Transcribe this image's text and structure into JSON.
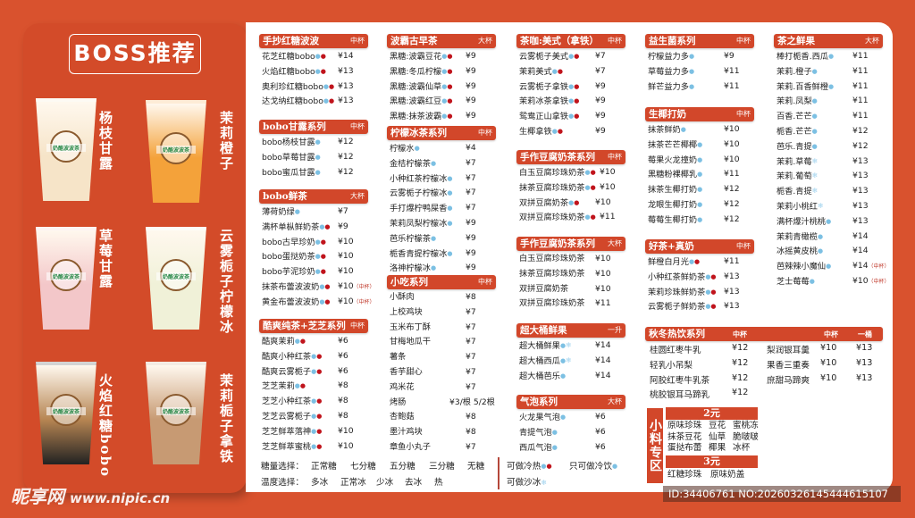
{
  "colors": {
    "background": "#d9522e",
    "header_bar": "#d2472a",
    "drop_blue": "#7cc0e3",
    "drop_red": "#c0141c",
    "snow": "#9fd2ee"
  },
  "boss": {
    "title": "BOSS推荐",
    "drinks": [
      {
        "name": "杨枝甘露",
        "color": "#f6e4c8"
      },
      {
        "name": "茉莉橙子",
        "color": "#f4a23a"
      },
      {
        "name": "草莓甘露",
        "color": "#f3c7c9"
      },
      {
        "name": "云雾栀子柠檬冰",
        "color": "#f0f1d8"
      },
      {
        "name": "火焰红糖bobo",
        "color": "#b68552"
      },
      {
        "name": "茉莉栀子拿铁",
        "color": "#c79a73"
      }
    ],
    "cup_logo": "奶酪波波茶"
  },
  "sections": [
    {
      "title": "手抄红糖波波",
      "size": "中杯",
      "items": [
        {
          "name": "花芝红糖bobo",
          "price": "¥14",
          "icons": [
            "drop-blue",
            "drop-red"
          ]
        },
        {
          "name": "火焰红糖bobo",
          "price": "¥13",
          "icons": [
            "drop-blue",
            "drop-red"
          ]
        },
        {
          "name": "奥利珍红糖bobo",
          "price": "¥13",
          "icons": [
            "drop-blue",
            "drop-red"
          ]
        },
        {
          "name": "达戈纳红糖bobo",
          "price": "¥13",
          "icons": [
            "drop-blue",
            "drop-red"
          ]
        }
      ]
    },
    {
      "title": "bobo甘露系列",
      "size": "中杯",
      "items": [
        {
          "name": "bobo杨枝甘露",
          "price": "¥12",
          "icons": [
            "drop-blue"
          ]
        },
        {
          "name": "bobo草莓甘露",
          "price": "¥12",
          "icons": [
            "drop-blue"
          ]
        },
        {
          "name": "bobo蜜瓜甘露",
          "price": "¥12",
          "icons": [
            "drop-blue"
          ]
        }
      ]
    },
    {
      "title": "bobo鲜茶",
      "size": "大杯",
      "items": [
        {
          "name": "薄荷奶绿",
          "price": "¥7",
          "icons": [
            "drop-blue"
          ]
        },
        {
          "name": "满杯单枞鲜奶茶",
          "price": "¥9",
          "icons": [
            "drop-blue",
            "drop-red"
          ]
        },
        {
          "name": "bobo古早珍奶",
          "price": "¥10",
          "icons": [
            "drop-blue",
            "drop-red"
          ]
        },
        {
          "name": "bobo蛋挞奶茶",
          "price": "¥10",
          "icons": [
            "drop-blue",
            "drop-red"
          ]
        },
        {
          "name": "bobo芋泥珍奶",
          "price": "¥10",
          "icons": [
            "drop-blue",
            "drop-red"
          ]
        },
        {
          "name": "抹茶布蕾波波奶",
          "price": "¥10",
          "note": "（中杯）",
          "icons": [
            "drop-blue",
            "drop-red"
          ]
        },
        {
          "name": "黄金布蕾波波奶",
          "price": "¥10",
          "note": "（中杯）",
          "icons": [
            "drop-blue",
            "drop-red"
          ]
        }
      ]
    },
    {
      "title": "酷爽纯茶+芝芝系列",
      "size": "中杯",
      "items": [
        {
          "name": "酷爽茉莉",
          "price": "¥6",
          "icons": [
            "drop-blue",
            "drop-red"
          ]
        },
        {
          "name": "酷爽小种红茶",
          "price": "¥6",
          "icons": [
            "drop-blue",
            "drop-red"
          ]
        },
        {
          "name": "酷爽云雾栀子",
          "price": "¥6",
          "icons": [
            "drop-blue",
            "drop-red"
          ]
        },
        {
          "name": "芝芝茉莉",
          "price": "¥8",
          "icons": [
            "drop-blue",
            "drop-red"
          ]
        },
        {
          "name": "芝芝小种红茶",
          "price": "¥8",
          "icons": [
            "drop-blue",
            "drop-red"
          ]
        },
        {
          "name": "芝芝云雾栀子",
          "price": "¥8",
          "icons": [
            "drop-blue",
            "drop-red"
          ]
        },
        {
          "name": "芝芝鲜萃落神",
          "price": "¥10",
          "icons": [
            "drop-blue",
            "drop-red"
          ]
        },
        {
          "name": "芝芝鲜萃蜜桃",
          "price": "¥10",
          "icons": [
            "drop-blue",
            "drop-red"
          ]
        }
      ]
    },
    {
      "title": "波霸古早茶",
      "size": "大杯",
      "items": [
        {
          "name": "黑糖:波霸豆花",
          "price": "¥9",
          "icons": [
            "drop-blue",
            "drop-red"
          ]
        },
        {
          "name": "黑糖:冬瓜柠檬",
          "price": "¥9",
          "icons": [
            "drop-blue",
            "drop-red"
          ]
        },
        {
          "name": "黑糖:波霸仙草",
          "price": "¥9",
          "icons": [
            "drop-blue",
            "drop-red"
          ]
        },
        {
          "name": "黑糖:波霸红豆",
          "price": "¥9",
          "icons": [
            "drop-blue",
            "drop-red"
          ]
        },
        {
          "name": "黑糖:抹茶波霸",
          "price": "¥9",
          "icons": [
            "drop-blue",
            "drop-red"
          ]
        }
      ]
    },
    {
      "title": "柠檬冰茶系列",
      "size": "中杯",
      "items": [
        {
          "name": "柠檬水",
          "price": "¥4",
          "icons": [
            "drop-blue"
          ]
        },
        {
          "name": "金桔柠檬茶",
          "price": "¥7",
          "icons": [
            "drop-blue"
          ]
        },
        {
          "name": "小种红茶柠檬冰",
          "price": "¥7",
          "icons": [
            "drop-blue"
          ]
        },
        {
          "name": "云雾栀子柠檬冰",
          "price": "¥7",
          "icons": [
            "drop-blue"
          ]
        },
        {
          "name": "手打爆柠鸭屎香",
          "price": "¥7",
          "icons": [
            "drop-blue"
          ]
        },
        {
          "name": "茉莉凤梨柠檬冰",
          "price": "¥9",
          "icons": [
            "drop-blue"
          ]
        },
        {
          "name": "芭乐柠檬茶",
          "price": "¥9",
          "icons": [
            "drop-blue"
          ]
        },
        {
          "name": "栀香青提柠檬冰",
          "price": "¥9",
          "icons": [
            "drop-blue"
          ]
        },
        {
          "name": "洛神柠檬冰",
          "price": "¥9",
          "icons": [
            "drop-blue"
          ]
        }
      ]
    },
    {
      "title": "小吃系列",
      "size": "中杯",
      "items": [
        {
          "name": "小酥肉",
          "price": "¥8",
          "icons": []
        },
        {
          "name": "上校鸡块",
          "price": "¥7",
          "icons": []
        },
        {
          "name": "玉米布丁酥",
          "price": "¥7",
          "icons": []
        },
        {
          "name": "甘梅地瓜干",
          "price": "¥7",
          "icons": []
        },
        {
          "name": "薯条",
          "price": "¥7",
          "icons": []
        },
        {
          "name": "香芋甜心",
          "price": "¥7",
          "icons": []
        },
        {
          "name": "鸡米花",
          "price": "¥7",
          "icons": []
        },
        {
          "name": "烤肠",
          "price": "¥3/根 5/2根",
          "icons": []
        },
        {
          "name": "杏鲍菇",
          "price": "¥8",
          "icons": []
        },
        {
          "name": "墨汁鸡块",
          "price": "¥8",
          "icons": []
        },
        {
          "name": "章鱼小丸子",
          "price": "¥7",
          "icons": []
        }
      ]
    },
    {
      "title": "茶咖:美式（拿铁）",
      "size": "中杯",
      "items": [
        {
          "name": "云雾栀子美式",
          "price": "¥7",
          "icons": [
            "drop-blue",
            "drop-red"
          ]
        },
        {
          "name": "茉莉美式",
          "price": "¥7",
          "icons": [
            "drop-blue",
            "drop-red"
          ]
        },
        {
          "name": "云雾栀子拿铁",
          "price": "¥9",
          "icons": [
            "drop-blue",
            "drop-red"
          ]
        },
        {
          "name": "茉莉冰茶拿铁",
          "price": "¥9",
          "icons": [
            "drop-blue",
            "drop-red"
          ]
        },
        {
          "name": "鸳鸯正山拿铁",
          "price": "¥9",
          "icons": [
            "drop-blue",
            "drop-red"
          ]
        },
        {
          "name": "生椰拿铁",
          "price": "¥9",
          "icons": [
            "drop-blue",
            "drop-red"
          ]
        }
      ]
    },
    {
      "title": "手作豆腐奶茶系列",
      "size": "中杯",
      "items": [
        {
          "name": "白玉豆腐珍珠奶茶",
          "price": "¥10",
          "icons": [
            "drop-blue",
            "drop-red"
          ]
        },
        {
          "name": "抹茶豆腐珍珠奶茶",
          "price": "¥10",
          "icons": [
            "drop-blue",
            "drop-red"
          ]
        },
        {
          "name": "双拼豆腐奶茶",
          "price": "¥10",
          "icons": [
            "drop-blue",
            "drop-red"
          ]
        },
        {
          "name": "双拼豆腐珍珠奶茶",
          "price": "¥11",
          "icons": [
            "drop-blue",
            "drop-red"
          ]
        }
      ]
    },
    {
      "title": "手作豆腐奶茶系列",
      "size": "大杯",
      "items": [
        {
          "name": "白玉豆腐珍珠奶茶",
          "price": "¥10",
          "icons": []
        },
        {
          "name": "抹茶豆腐珍珠奶茶",
          "price": "¥10",
          "icons": []
        },
        {
          "name": "双拼豆腐奶茶",
          "price": "¥10",
          "icons": []
        },
        {
          "name": "双拼豆腐珍珠奶茶",
          "price": "¥11",
          "icons": []
        }
      ]
    },
    {
      "title": "超大桶鲜果",
      "size": "一升",
      "items": [
        {
          "name": "超大桶鲜果",
          "price": "¥14",
          "icons": [
            "drop-blue",
            "snowflake"
          ]
        },
        {
          "name": "超大桶西瓜",
          "price": "¥14",
          "icons": [
            "drop-blue",
            "snowflake"
          ]
        },
        {
          "name": "超大桶芭乐",
          "price": "¥14",
          "icons": [
            "drop-blue"
          ]
        }
      ]
    },
    {
      "title": "气泡系列",
      "size": "大杯",
      "items": [
        {
          "name": "火龙果气泡",
          "price": "¥6",
          "icons": [
            "drop-blue"
          ]
        },
        {
          "name": "青提气泡",
          "price": "¥6",
          "icons": [
            "drop-blue"
          ]
        },
        {
          "name": "西瓜气泡",
          "price": "¥6",
          "icons": [
            "drop-blue"
          ]
        }
      ]
    },
    {
      "title": "益生菌系列",
      "size": "中杯",
      "items": [
        {
          "name": "柠檬益力多",
          "price": "¥9",
          "icons": [
            "drop-blue"
          ]
        },
        {
          "name": "草莓益力多",
          "price": "¥11",
          "icons": [
            "drop-blue"
          ]
        },
        {
          "name": "鲜芒益力多",
          "price": "¥11",
          "icons": [
            "drop-blue"
          ]
        }
      ]
    },
    {
      "title": "生椰打奶",
      "size": "中杯",
      "items": [
        {
          "name": "抹茶鲜奶",
          "price": "¥10",
          "icons": [
            "drop-blue"
          ]
        },
        {
          "name": "抹茶芒芒椰椰",
          "price": "¥10",
          "icons": [
            "drop-blue"
          ]
        },
        {
          "name": "莓果火龙撞奶",
          "price": "¥10",
          "icons": [
            "drop-blue"
          ]
        },
        {
          "name": "黑糖粉裸椰乳",
          "price": "¥11",
          "icons": [
            "drop-blue"
          ]
        },
        {
          "name": "抹茶生椰打奶",
          "price": "¥12",
          "icons": [
            "drop-blue"
          ]
        },
        {
          "name": "龙眼生椰打奶",
          "price": "¥12",
          "icons": [
            "drop-blue"
          ]
        },
        {
          "name": "莓莓生椰打奶",
          "price": "¥12",
          "icons": [
            "drop-blue"
          ]
        }
      ]
    },
    {
      "title": "好茶+真奶",
      "size": "中杯",
      "items": [
        {
          "name": "鲜橙白月光",
          "price": "¥11",
          "icons": [
            "drop-blue",
            "drop-red"
          ]
        },
        {
          "name": "小种红茶鲜奶茶",
          "price": "¥13",
          "icons": [
            "drop-blue",
            "drop-red"
          ]
        },
        {
          "name": "茉莉珍珠鲜奶茶",
          "price": "¥13",
          "icons": [
            "drop-blue",
            "drop-red"
          ]
        },
        {
          "name": "云雾栀子鲜奶茶",
          "price": "¥13",
          "icons": [
            "drop-blue",
            "drop-red"
          ]
        }
      ]
    },
    {
      "title": "茶之鲜果",
      "size": "大杯",
      "items": [
        {
          "name": "棒打栀香.西瓜",
          "price": "¥11",
          "icons": [
            "drop-blue"
          ]
        },
        {
          "name": "茉莉.橙子",
          "price": "¥11",
          "icons": [
            "drop-blue"
          ]
        },
        {
          "name": "茉莉.百香鲜橙",
          "price": "¥11",
          "icons": [
            "drop-blue"
          ]
        },
        {
          "name": "茉莉.凤梨",
          "price": "¥11",
          "icons": [
            "drop-blue"
          ]
        },
        {
          "name": "百香.芒芒",
          "price": "¥11",
          "icons": [
            "drop-blue"
          ]
        },
        {
          "name": "栀香.芒芒",
          "price": "¥12",
          "icons": [
            "drop-blue"
          ]
        },
        {
          "name": "芭乐.青提",
          "price": "¥12",
          "icons": [
            "drop-blue"
          ]
        },
        {
          "name": "茉莉.草莓",
          "price": "¥13",
          "icons": [
            "snowflake"
          ]
        },
        {
          "name": "茉莉.葡萄",
          "price": "¥13",
          "icons": [
            "snowflake"
          ]
        },
        {
          "name": "栀香.青提",
          "price": "¥13",
          "icons": [
            "snowflake"
          ]
        },
        {
          "name": "茉莉小桃红",
          "price": "¥13",
          "icons": [
            "snowflake"
          ]
        },
        {
          "name": "满杯爆汁桃桃",
          "price": "¥13",
          "icons": [
            "drop-blue"
          ]
        },
        {
          "name": "茉莉青橄榄",
          "price": "¥14",
          "icons": [
            "drop-blue"
          ]
        },
        {
          "name": "冰摇黄皮桃",
          "price": "¥14",
          "icons": [
            "drop-blue"
          ]
        },
        {
          "name": "芭辣辣小魔仙",
          "price": "¥14",
          "note": "（中杯）",
          "icons": [
            "drop-blue"
          ]
        },
        {
          "name": "芝士莓莓",
          "price": "¥10",
          "note": "（中杯）",
          "icons": [
            "drop-blue"
          ]
        }
      ]
    }
  ],
  "hot": {
    "title": "秋冬热饮系列",
    "size_left": "中杯",
    "size_mid": "中杯",
    "size_right": "一桶",
    "left": [
      {
        "name": "桂圆红枣牛乳",
        "price": "¥12"
      },
      {
        "name": "轻乳小吊梨",
        "price": "¥12"
      },
      {
        "name": "阿胶红枣牛乳茶",
        "price": "¥12"
      },
      {
        "name": "桃胶银耳马蹄乳",
        "price": "¥12"
      }
    ],
    "right": [
      {
        "name": "梨润银耳羹",
        "price": "¥10",
        "price2": "¥13"
      },
      {
        "name": "果香三重奏",
        "price": "¥10",
        "price2": "¥13"
      },
      {
        "name": "庶甜马蹄爽",
        "price": "¥10",
        "price2": "¥13"
      }
    ]
  },
  "toppings": {
    "title": "小料专区",
    "tier1": "2元",
    "tier1_items": [
      "原味珍珠",
      "豆花",
      "蜜桃冻",
      "抹茶豆花",
      "仙草",
      "脆啵啵",
      "蛋挞布蕾",
      "椰果",
      "冰杯"
    ],
    "tier2": "3元",
    "tier2_items": [
      "红糖珍珠",
      "原味奶盖"
    ]
  },
  "footer": {
    "sugar_label": "糖量选择：",
    "sugar": [
      "正常糖",
      "七分糖",
      "五分糖",
      "三分糖",
      "无糖"
    ],
    "temp_label": "温度选择：",
    "temp": [
      "多冰",
      "正常冰",
      "少冰",
      "去冰",
      "热"
    ],
    "legend_hot_cold": "可做冷热",
    "legend_cold": "只可做冷饮",
    "legend_slush": "可做沙冰"
  },
  "watermark": {
    "logo": "昵享网",
    "url": "www.nipic.cn",
    "id": "ID:34406761 NO:20260326145444615107"
  }
}
